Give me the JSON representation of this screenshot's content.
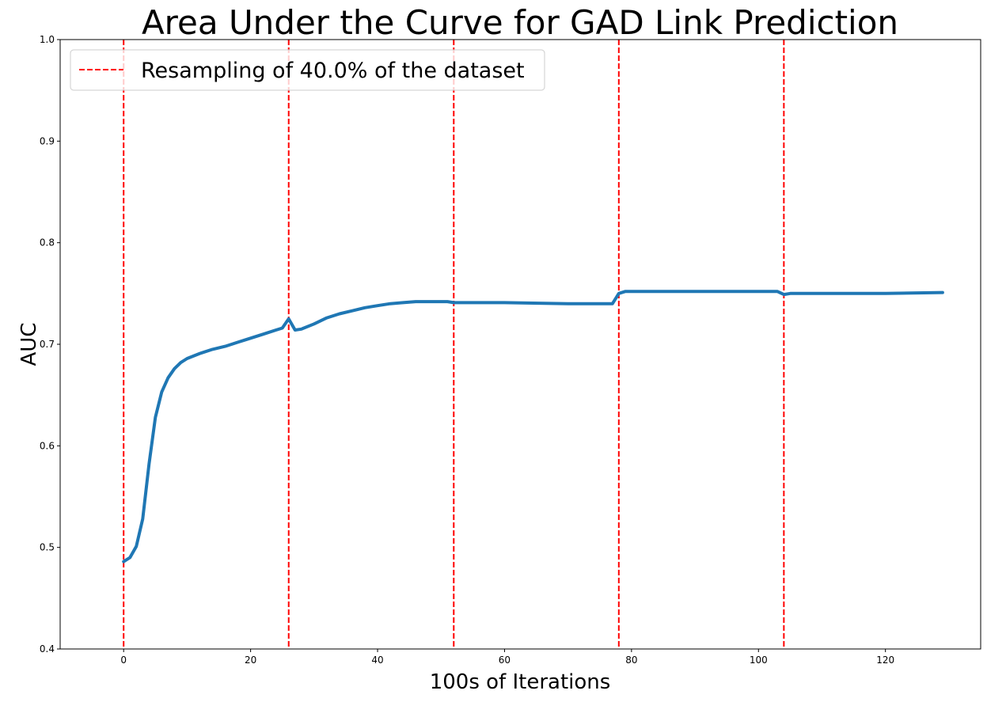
{
  "chart_data": {
    "type": "line",
    "title": "Area Under the Curve for GAD Link Prediction",
    "xlabel": "100s of Iterations",
    "ylabel": "AUC",
    "xlim": [
      -10,
      135
    ],
    "ylim": [
      0.4,
      1.0
    ],
    "xticks": [
      0,
      20,
      40,
      60,
      80,
      100,
      120
    ],
    "yticks": [
      0.4,
      0.5,
      0.6,
      0.7,
      0.8,
      0.9,
      1.0
    ],
    "grid": false,
    "legend": {
      "position": "top-left",
      "entries": [
        "Resampling of 40.0% of the dataset"
      ]
    },
    "series": [
      {
        "color": "#1f77b4",
        "x": [
          0,
          1,
          2,
          3,
          4,
          5,
          6,
          7,
          8,
          9,
          10,
          12,
          14,
          16,
          18,
          20,
          22,
          24,
          25,
          26,
          27,
          28,
          30,
          32,
          34,
          36,
          38,
          40,
          42,
          44,
          46,
          48,
          50,
          51,
          52,
          60,
          70,
          76,
          77,
          78,
          79,
          80,
          90,
          100,
          103,
          104,
          105,
          110,
          120,
          129
        ],
        "y": [
          0.486,
          0.49,
          0.501,
          0.528,
          0.582,
          0.628,
          0.653,
          0.667,
          0.676,
          0.682,
          0.686,
          0.691,
          0.695,
          0.698,
          0.702,
          0.706,
          0.71,
          0.714,
          0.716,
          0.725,
          0.714,
          0.715,
          0.72,
          0.726,
          0.73,
          0.733,
          0.736,
          0.738,
          0.74,
          0.741,
          0.742,
          0.742,
          0.742,
          0.742,
          0.741,
          0.741,
          0.74,
          0.74,
          0.74,
          0.75,
          0.752,
          0.752,
          0.752,
          0.752,
          0.752,
          0.749,
          0.75,
          0.75,
          0.75,
          0.751
        ]
      }
    ],
    "vlines": {
      "x": [
        0,
        26,
        52,
        78,
        104
      ],
      "color": "#ff0000",
      "style": "dashed",
      "label": "Resampling of 40.0% of the dataset"
    }
  }
}
